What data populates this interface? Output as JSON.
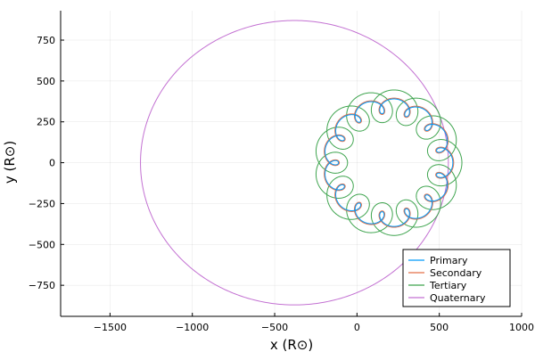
{
  "chart_data": {
    "type": "line",
    "title": "",
    "xlabel": "x (R⊙)",
    "ylabel": "y (R⊙)",
    "xlim": [
      -1800,
      1000
    ],
    "ylim": [
      -940,
      930
    ],
    "xticks": [
      -1500,
      -1000,
      -500,
      0,
      500,
      1000
    ],
    "xtick_labels": [
      "−1500",
      "−1000",
      "−500",
      "0",
      "500",
      "1000"
    ],
    "yticks": [
      -750,
      -500,
      -250,
      0,
      250,
      500,
      750
    ],
    "ytick_labels": [
      "−750",
      "−500",
      "−250",
      "0",
      "250",
      "500",
      "750"
    ],
    "grid": true,
    "legend_position": "bottom-right",
    "series": [
      {
        "name": "Primary",
        "color": "#009AFA",
        "model": "epicycle",
        "center": [
          -380,
          0
        ],
        "outer_radius": 910,
        "primary_radius": 560,
        "primary_cycles": 0.5,
        "loop_radius": 45,
        "loop_cycles": 14
      },
      {
        "name": "Secondary",
        "color": "#E36F47",
        "model": "epicycle",
        "center": [
          -380,
          0
        ],
        "outer_radius": 910,
        "primary_radius": 560,
        "primary_cycles": 0.5,
        "loop_radius": 50,
        "loop_cycles": 14
      },
      {
        "name": "Tertiary",
        "color": "#3EA44E",
        "model": "epicycle",
        "center": [
          -380,
          0
        ],
        "outer_radius": 910,
        "primary_radius": 560,
        "primary_cycles": 0.5,
        "loop_radius": 100,
        "loop_cycles": 14
      },
      {
        "name": "Quaternary",
        "color": "#C371D2",
        "model": "ellipse",
        "center": [
          -380,
          0
        ],
        "rx": 935,
        "ry": 870
      }
    ]
  }
}
